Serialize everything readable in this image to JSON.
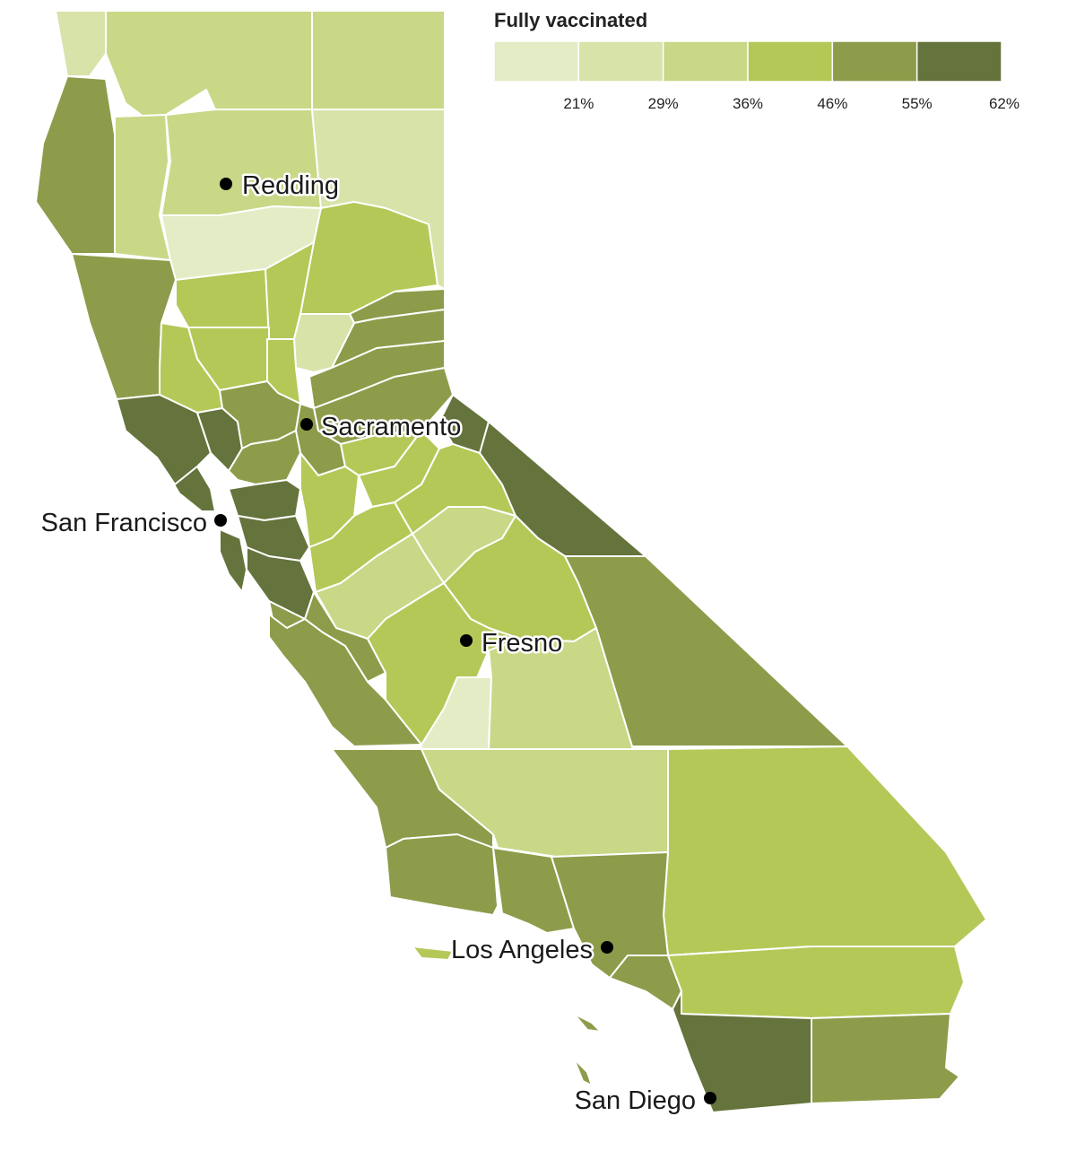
{
  "legend": {
    "title": "Fully vaccinated",
    "bins": [
      {
        "color": "#e4ecc6",
        "upper_label": "21%"
      },
      {
        "color": "#d7e3a9",
        "upper_label": "29%"
      },
      {
        "color": "#c8d887",
        "upper_label": "36%"
      },
      {
        "color": "#b4c858",
        "upper_label": "46%"
      },
      {
        "color": "#8c9c4a",
        "upper_label": "55%"
      },
      {
        "color": "#65733c",
        "upper_label": "62%"
      }
    ]
  },
  "cities": [
    {
      "name": "Redding"
    },
    {
      "name": "Sacramento"
    },
    {
      "name": "San Francisco"
    },
    {
      "name": "Fresno"
    },
    {
      "name": "Los Angeles"
    },
    {
      "name": "San Diego"
    }
  ],
  "colors": {
    "county_border": "#ffffff",
    "city_dot": "#000000"
  }
}
